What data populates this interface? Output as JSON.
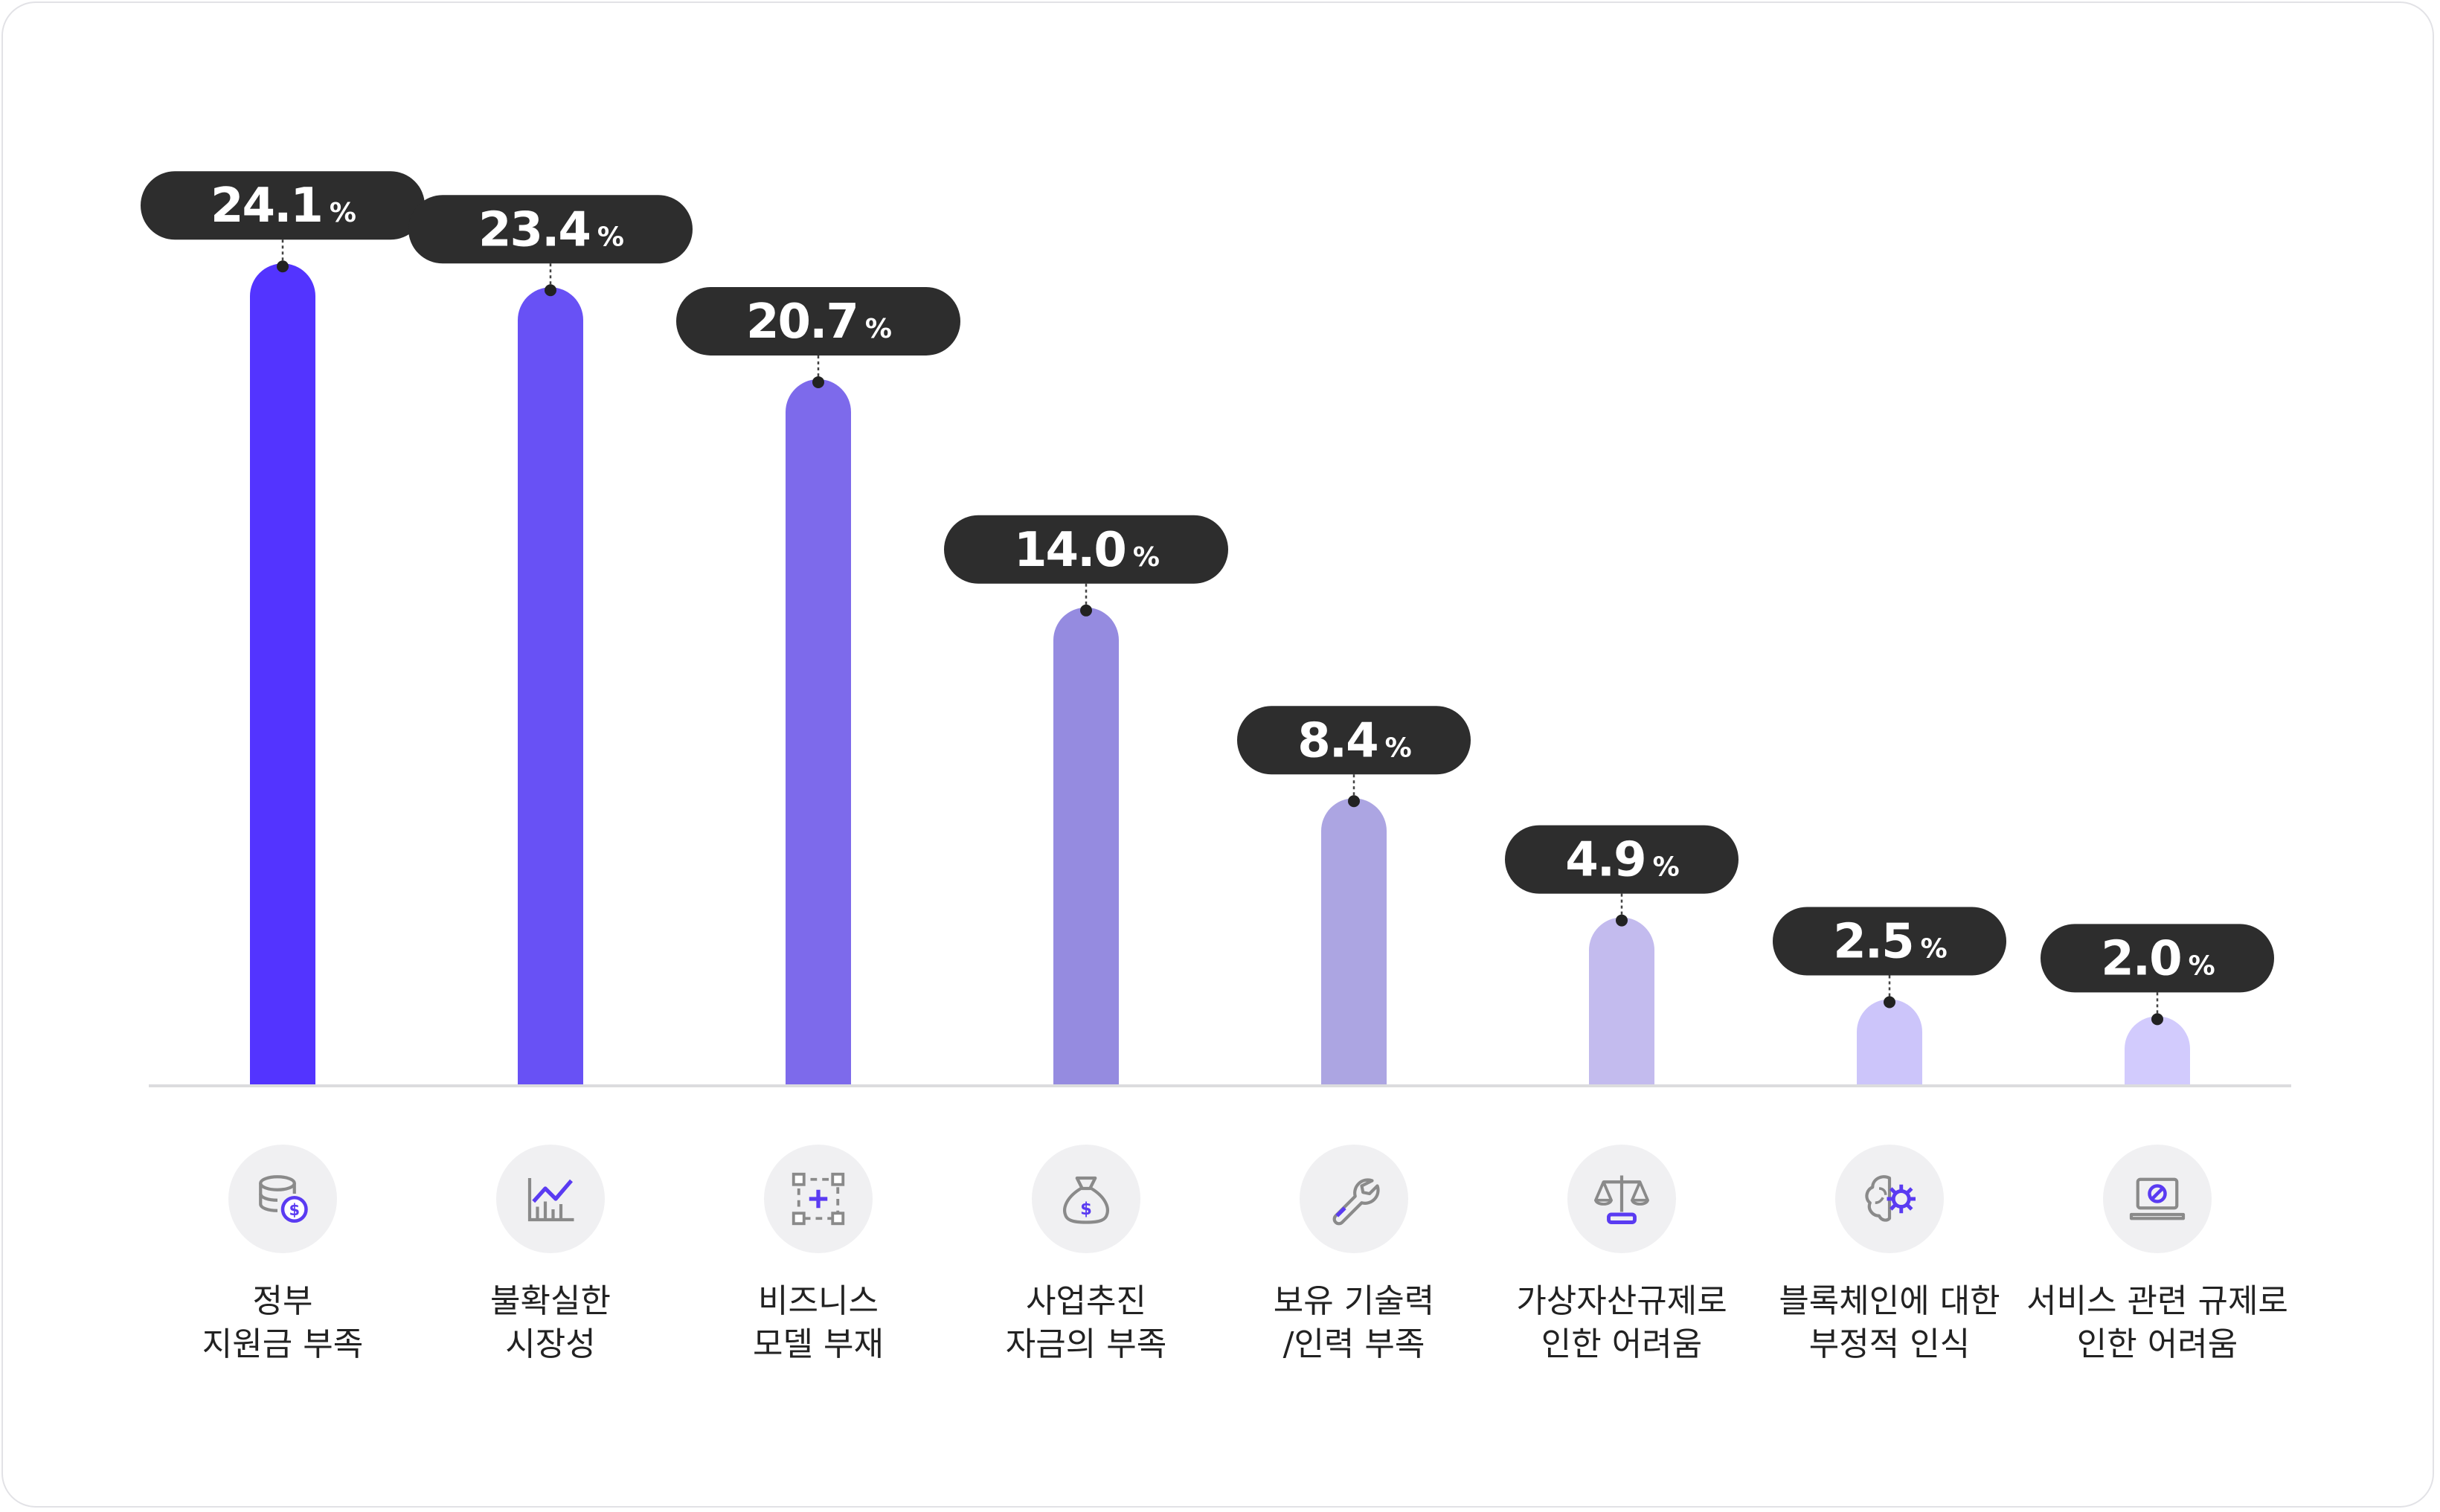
{
  "chart_data": {
    "type": "bar",
    "unit": "%",
    "categories": [
      [
        "정부",
        "지원금 부족"
      ],
      [
        "불확실한",
        "시장성"
      ],
      [
        "비즈니스",
        "모델 부재"
      ],
      [
        "사업추진",
        "자금의 부족"
      ],
      [
        "보유 기술력",
        "/인력 부족"
      ],
      [
        "가상자산규제로",
        "인한 어려움"
      ],
      [
        "블록체인에 대한",
        "부정적 인식"
      ],
      [
        "서비스 관련 규제로",
        "인한 어려움"
      ]
    ],
    "values": [
      24.1,
      23.4,
      20.7,
      14.0,
      8.4,
      4.9,
      2.5,
      2.0
    ],
    "value_labels": [
      "24.1",
      "23.4",
      "20.7",
      "14.0",
      "8.4",
      "4.9",
      "2.5",
      "2.0"
    ],
    "icons": [
      "coins-dollar-icon",
      "line-chart-icon",
      "business-model-icon",
      "money-bag-icon",
      "wrench-icon",
      "scale-icon",
      "brain-gear-icon",
      "laptop-blocked-icon"
    ],
    "colors": [
      "#5334ff",
      "#6851f5",
      "#7d6aeb",
      "#958be0",
      "#aca5e2",
      "#c3bbee",
      "#ccc5fa",
      "#d2cbfd"
    ],
    "pill_color": "#2d2d2d",
    "accent_color": "#5a3bf2",
    "ylim": [
      0,
      26
    ],
    "grid": false,
    "legend": "none"
  }
}
